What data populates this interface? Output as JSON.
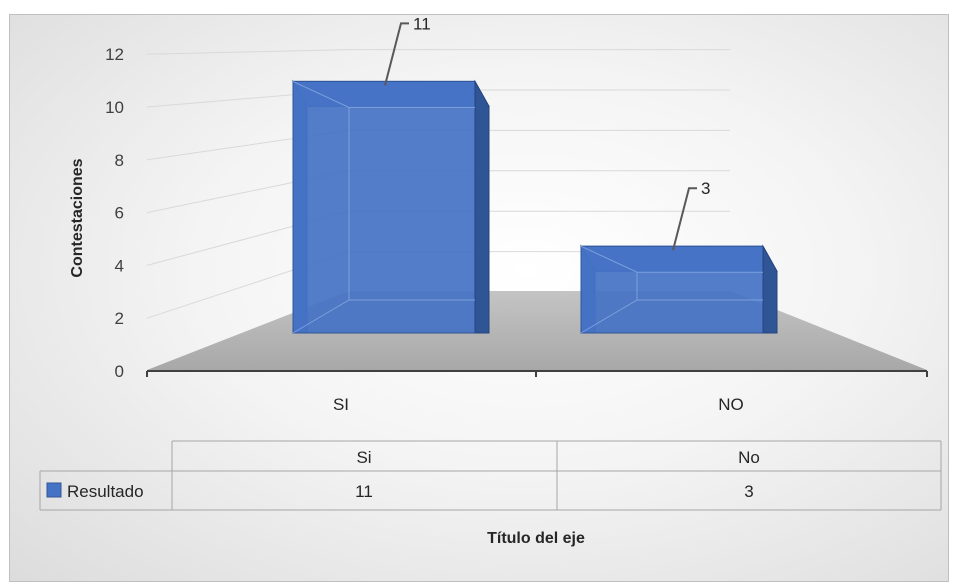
{
  "chart_data": {
    "type": "bar",
    "view": "3d",
    "categories": [
      "SI",
      "NO"
    ],
    "series": [
      {
        "name": "Resultado",
        "values": [
          11,
          3
        ],
        "color": "#4472C4"
      }
    ],
    "data_labels": [
      "11",
      "3"
    ],
    "ylabel": "Contestaciones",
    "xlabel": "Título del eje",
    "ylim": [
      0,
      12
    ],
    "yticks": [
      0,
      2,
      4,
      6,
      8,
      10,
      12
    ],
    "grid": true,
    "legend": "data-table",
    "data_table": {
      "headers": [
        "Si",
        "No"
      ],
      "rows": [
        {
          "label": "Resultado",
          "values": [
            "11",
            "3"
          ]
        }
      ]
    }
  }
}
